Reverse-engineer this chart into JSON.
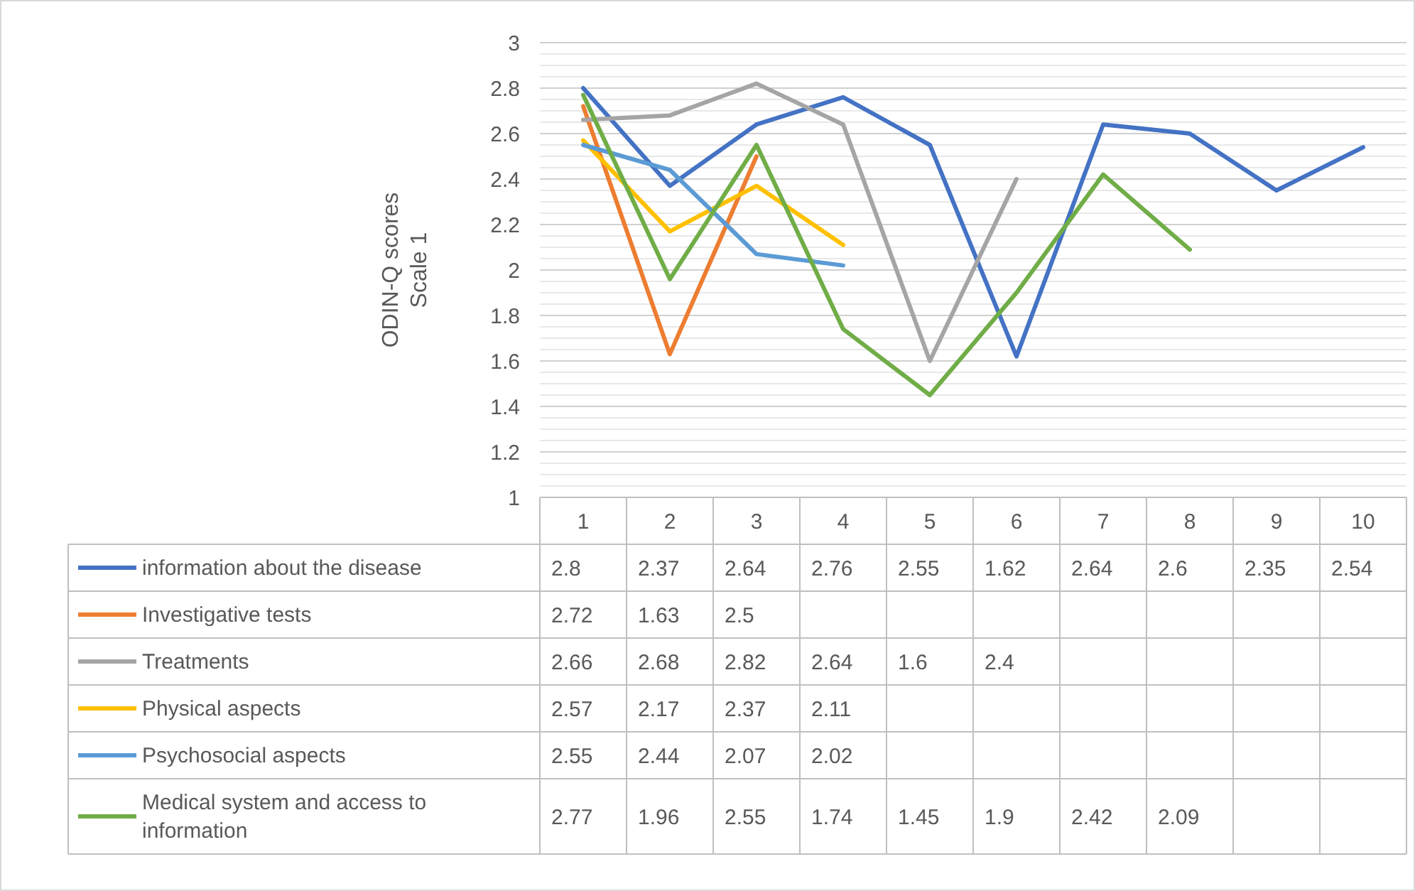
{
  "chart_data": {
    "type": "line",
    "ylabel": "ODIN-Q scores\nScale 1",
    "categories": [
      "1",
      "2",
      "3",
      "4",
      "5",
      "6",
      "7",
      "8",
      "9",
      "10"
    ],
    "series": [
      {
        "name": "information about the disease",
        "color": "#4472c4",
        "values": [
          2.8,
          2.37,
          2.64,
          2.76,
          2.55,
          1.62,
          2.64,
          2.6,
          2.35,
          2.54
        ]
      },
      {
        "name": "Investigative tests",
        "color": "#ed7d31",
        "values": [
          2.72,
          1.63,
          2.5,
          null,
          null,
          null,
          null,
          null,
          null,
          null
        ]
      },
      {
        "name": "Treatments",
        "color": "#a5a5a5",
        "values": [
          2.66,
          2.68,
          2.82,
          2.64,
          1.6,
          2.4,
          null,
          null,
          null,
          null
        ]
      },
      {
        "name": "Physical aspects",
        "color": "#ffc000",
        "values": [
          2.57,
          2.17,
          2.37,
          2.11,
          null,
          null,
          null,
          null,
          null,
          null
        ]
      },
      {
        "name": "Psychosocial aspects",
        "color": "#5b9bd5",
        "values": [
          2.55,
          2.44,
          2.07,
          2.02,
          null,
          null,
          null,
          null,
          null,
          null
        ]
      },
      {
        "name": "Medical system and access to information",
        "color": "#70ad47",
        "values": [
          2.77,
          1.96,
          2.55,
          1.74,
          1.45,
          1.9,
          2.42,
          2.09,
          null,
          null
        ]
      }
    ],
    "ylim": [
      1,
      3
    ],
    "yticks": [
      1,
      1.2,
      1.4,
      1.6,
      1.8,
      2,
      2.2,
      2.4,
      2.6,
      2.8,
      3
    ],
    "grid": true,
    "legend": "bottom",
    "data_labels": true,
    "line_style": "solid"
  }
}
